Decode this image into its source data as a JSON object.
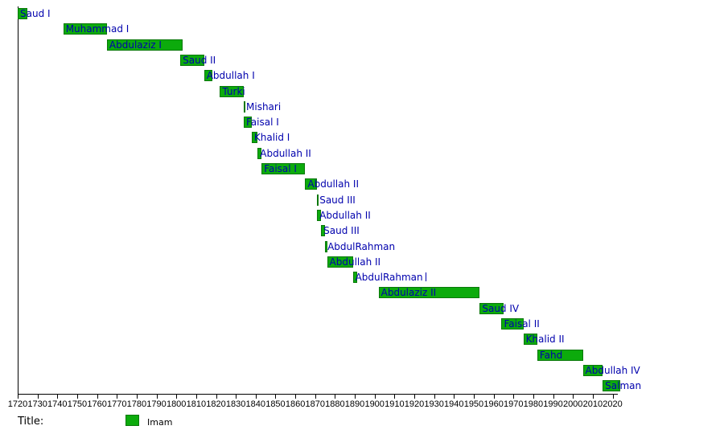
{
  "chart_data": {
    "type": "bar",
    "subtype": "gantt-timeline",
    "title": "",
    "legend": {
      "title_label": "Title:",
      "items": [
        {
          "label": "Imam",
          "color": "#0CAB0C"
        }
      ],
      "position": "bottom"
    },
    "xaxis": {
      "min": 1720,
      "max": 2020,
      "tick_step": 10,
      "ticks": [
        1720,
        1730,
        1740,
        1750,
        1760,
        1770,
        1780,
        1790,
        1800,
        1810,
        1820,
        1830,
        1840,
        1850,
        1860,
        1870,
        1880,
        1890,
        1900,
        1910,
        1920,
        1930,
        1940,
        1950,
        1960,
        1970,
        1980,
        1990,
        2000,
        2010,
        2020
      ],
      "grid": false
    },
    "rows": [
      {
        "label": "Saud I",
        "start": 1720,
        "end": 1725
      },
      {
        "label": "Muhammad I",
        "start": 1743,
        "end": 1765
      },
      {
        "label": "Abdulaziz I",
        "start": 1765,
        "end": 1803
      },
      {
        "label": "Saud II",
        "start": 1802,
        "end": 1814
      },
      {
        "label": "Abdullah I",
        "start": 1814,
        "end": 1818
      },
      {
        "label": "Turki",
        "start": 1822,
        "end": 1834
      },
      {
        "label": "Mishari",
        "start": 1834,
        "end": 1834
      },
      {
        "label": "Faisal I",
        "start": 1834,
        "end": 1838
      },
      {
        "label": "Khalid I",
        "start": 1838,
        "end": 1841
      },
      {
        "label": "Abdullah II",
        "start": 1841,
        "end": 1843
      },
      {
        "label": "Faisal I",
        "start": 1843,
        "end": 1865
      },
      {
        "label": "Abdullah II",
        "start": 1865,
        "end": 1871
      },
      {
        "label": "Saud III",
        "start": 1871,
        "end": 1871
      },
      {
        "label": "Abdullah II",
        "start": 1871,
        "end": 1873
      },
      {
        "label": "Saud III",
        "start": 1873,
        "end": 1875
      },
      {
        "label": "AbdulRahman",
        "start": 1875,
        "end": 1876
      },
      {
        "label": "Abdullah II",
        "start": 1876,
        "end": 1889
      },
      {
        "label": "AbdulRahman",
        "start": 1889,
        "end": 1891,
        "cursor_after_label": true
      },
      {
        "label": "Abdulaziz II",
        "start": 1902,
        "end": 1953
      },
      {
        "label": "Saud IV",
        "start": 1953,
        "end": 1965
      },
      {
        "label": "Faisal II",
        "start": 1964,
        "end": 1975
      },
      {
        "label": "Khalid II",
        "start": 1975,
        "end": 1982
      },
      {
        "label": "Fahd",
        "start": 1982,
        "end": 2005
      },
      {
        "label": "Abdullah IV",
        "start": 2005,
        "end": 2015
      },
      {
        "label": "Salman",
        "start": 2015,
        "end": 2024
      }
    ],
    "colors": {
      "bar_fill": "#0CAB0C",
      "bar_border": "#0A780A",
      "row_label": "#0000AD",
      "axis": "#000000",
      "background": "#FFFFFF"
    }
  }
}
